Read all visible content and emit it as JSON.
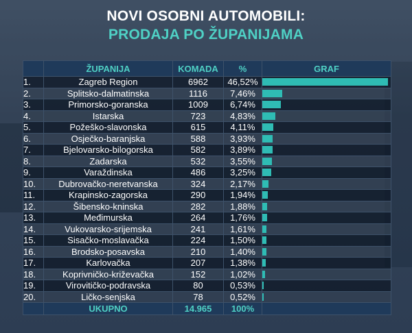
{
  "header": {
    "title_line1": "NOVI OSOBNI AUTOMOBILI:",
    "title_line2": "PRODAJA PO ŽUPANIJAMA"
  },
  "table": {
    "col_rank": "",
    "col_county": "ŽUPANIJA",
    "col_units": "KOMADA",
    "col_pct": "%",
    "col_graph": "GRAF",
    "total_label": "UKUPNO",
    "total_units": "14.965",
    "total_pct": "100%"
  },
  "colors": {
    "accent": "#4fd1c5",
    "bar": "#2fbcb4",
    "header_bg": "#1f3a5a"
  },
  "chart_data": {
    "type": "bar",
    "orientation": "horizontal",
    "rows": [
      {
        "rank": "1.",
        "name": "Zagreb Region",
        "units": "6962",
        "pct": "46,52%",
        "value": 46.52
      },
      {
        "rank": "2.",
        "name": "Splitsko-dalmatinska",
        "units": "1116",
        "pct": "7,46%",
        "value": 7.46
      },
      {
        "rank": "3.",
        "name": "Primorsko-goranska",
        "units": "1009",
        "pct": "6,74%",
        "value": 6.74
      },
      {
        "rank": "4.",
        "name": "Istarska",
        "units": "723",
        "pct": "4,83%",
        "value": 4.83
      },
      {
        "rank": "5.",
        "name": "Požeško-slavonska",
        "units": "615",
        "pct": "4,11%",
        "value": 4.11
      },
      {
        "rank": "6.",
        "name": "Osječko-baranjska",
        "units": "588",
        "pct": "3,93%",
        "value": 3.93
      },
      {
        "rank": "7.",
        "name": "Bjelovarsko-bilogorska",
        "units": "582",
        "pct": "3,89%",
        "value": 3.89
      },
      {
        "rank": "8.",
        "name": "Zadarska",
        "units": "532",
        "pct": "3,55%",
        "value": 3.55
      },
      {
        "rank": "9.",
        "name": "Varaždinska",
        "units": "486",
        "pct": "3,25%",
        "value": 3.25
      },
      {
        "rank": "10.",
        "name": "Dubrovačko-neretvanska",
        "units": "324",
        "pct": "2,17%",
        "value": 2.17
      },
      {
        "rank": "11.",
        "name": "Krapinsko-zagorska",
        "units": "290",
        "pct": "1,94%",
        "value": 1.94
      },
      {
        "rank": "12.",
        "name": "Šibensko-kninska",
        "units": "282",
        "pct": "1,88%",
        "value": 1.88
      },
      {
        "rank": "13.",
        "name": "Međimurska",
        "units": "264",
        "pct": "1,76%",
        "value": 1.76
      },
      {
        "rank": "14.",
        "name": "Vukovarsko-srijemska",
        "units": "241",
        "pct": "1,61%",
        "value": 1.61
      },
      {
        "rank": "15.",
        "name": "Sisačko-moslavačka",
        "units": "224",
        "pct": "1,50%",
        "value": 1.5
      },
      {
        "rank": "16.",
        "name": "Brodsko-posavska",
        "units": "210",
        "pct": "1,40%",
        "value": 1.4
      },
      {
        "rank": "17.",
        "name": "Karlovačka",
        "units": "207",
        "pct": "1,38%",
        "value": 1.38
      },
      {
        "rank": "18.",
        "name": "Koprivničko-križevačka",
        "units": "152",
        "pct": "1,02%",
        "value": 1.02
      },
      {
        "rank": "19.",
        "name": "Virovitičko-podravska",
        "units": "80",
        "pct": "0,53%",
        "value": 0.53
      },
      {
        "rank": "20.",
        "name": "Ličko-senjska",
        "units": "78",
        "pct": "0,52%",
        "value": 0.52
      }
    ],
    "xlim": [
      0,
      46.52
    ]
  }
}
